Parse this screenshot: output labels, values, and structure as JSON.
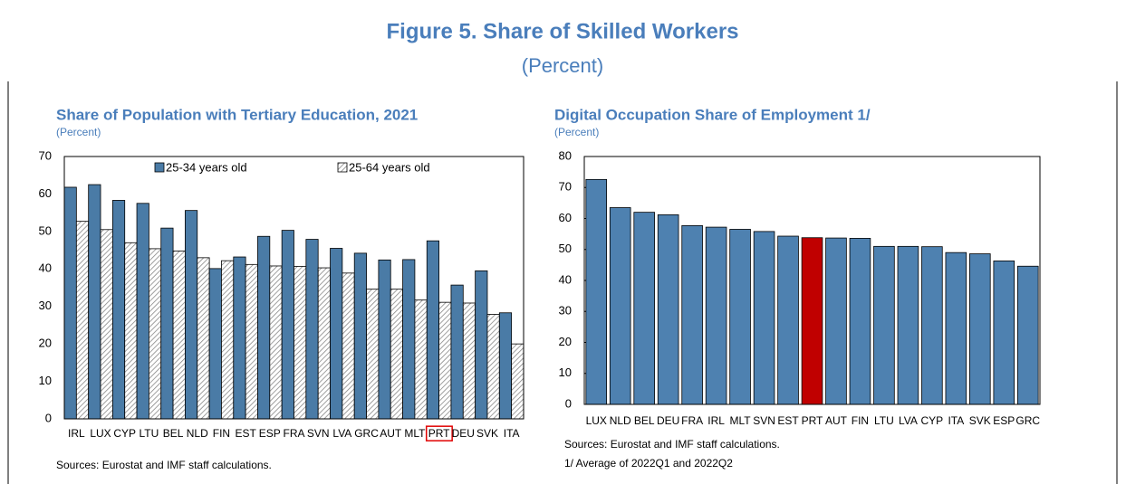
{
  "header": {
    "title": "Figure 5. Share of Skilled Workers",
    "subtitle": "(Percent)"
  },
  "chart_data": [
    {
      "type": "bar",
      "title": "Share of Population with Tertiary Education, 2021",
      "unit_label": "(Percent)",
      "categories": [
        "IRL",
        "LUX",
        "CYP",
        "LTU",
        "BEL",
        "NLD",
        "FIN",
        "EST",
        "ESP",
        "FRA",
        "SVN",
        "LVA",
        "GRC",
        "AUT",
        "MLT",
        "PRT",
        "DEU",
        "SVK",
        "ITA"
      ],
      "series": [
        {
          "name": "25-34 years old",
          "color": "#4a7ba6",
          "values": [
            61.8,
            62.5,
            58.3,
            57.5,
            50.9,
            55.6,
            40.1,
            43.2,
            48.7,
            50.3,
            47.9,
            45.5,
            44.2,
            42.4,
            42.5,
            47.5,
            35.7,
            39.5,
            28.3
          ]
        },
        {
          "name": "25-64 years old",
          "color": "#808080",
          "pattern": "hatch",
          "values": [
            52.7,
            50.5,
            47.0,
            45.4,
            44.8,
            43.0,
            42.2,
            41.2,
            40.8,
            40.7,
            40.3,
            38.9,
            34.6,
            34.6,
            31.7,
            31.1,
            30.9,
            27.9,
            20.0
          ]
        }
      ],
      "ylim": [
        0,
        70
      ],
      "yticks": [
        0,
        10,
        20,
        30,
        40,
        50,
        60,
        70
      ],
      "grid": false,
      "legend": "top",
      "highlight_category_index": 15,
      "highlight_color": "#e00000",
      "note": "Sources: Eurostat and IMF staff calculations."
    },
    {
      "type": "bar",
      "title": "Digital Occupation Share of Employment 1/",
      "unit_label": "(Percent)",
      "categories": [
        "LUX",
        "NLD",
        "BEL",
        "DEU",
        "FRA",
        "IRL",
        "MLT",
        "SVN",
        "EST",
        "PRT",
        "AUT",
        "FIN",
        "LTU",
        "LVA",
        "CYP",
        "ITA",
        "SVK",
        "ESP",
        "GRC"
      ],
      "series": [
        {
          "color": "#4e81b0",
          "values": [
            72.6,
            63.5,
            62.0,
            61.2,
            57.7,
            57.2,
            56.5,
            55.8,
            54.3,
            53.8,
            53.7,
            53.6,
            51.0,
            51.0,
            50.9,
            49.0,
            48.6,
            46.3,
            44.6
          ]
        }
      ],
      "ylim": [
        0,
        80
      ],
      "yticks": [
        0,
        10,
        20,
        30,
        40,
        50,
        60,
        70,
        80
      ],
      "grid": false,
      "highlight_category_index": 9,
      "highlight_color": "#c00000",
      "note": "Sources: Eurostat and IMF staff calculations.",
      "footnote": "1/ Average of 2022Q1 and 2022Q2"
    }
  ]
}
